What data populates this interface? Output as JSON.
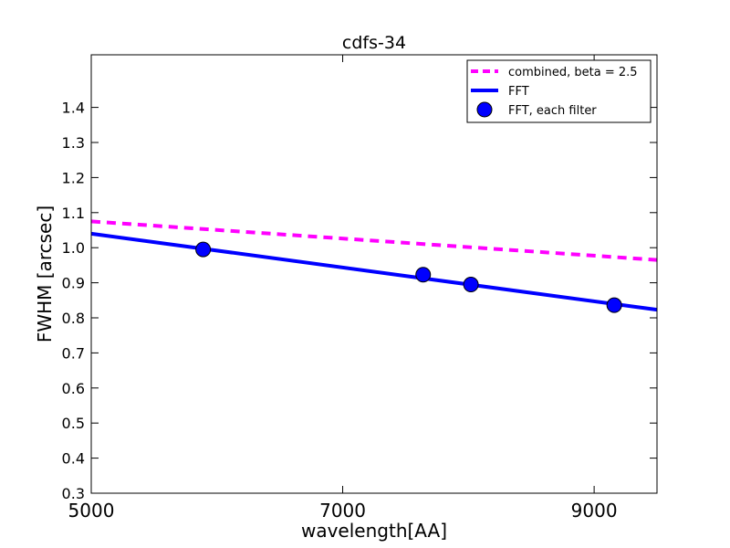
{
  "chart_data": {
    "type": "line",
    "title": "cdfs-34",
    "xlabel": "wavelength[AA]",
    "ylabel": "FWHM [arcsec]",
    "xlim": [
      5000,
      9500
    ],
    "ylim": [
      0.3,
      1.55
    ],
    "x_ticks": [
      5000,
      7000,
      9000
    ],
    "x_tick_labels": [
      "5000",
      "7000",
      "9000"
    ],
    "y_ticks": [
      0.3,
      0.4,
      0.5,
      0.6,
      0.7,
      0.8,
      0.9,
      1.0,
      1.1,
      1.2,
      1.3,
      1.4
    ],
    "y_tick_labels": [
      "0.3",
      "0.4",
      "0.5",
      "0.6",
      "0.7",
      "0.8",
      "0.9",
      "1.0",
      "1.1",
      "1.2",
      "1.3",
      "1.4"
    ],
    "grid": false,
    "legend_position": "top-right",
    "series": [
      {
        "name": "combined, beta = 2.5",
        "style": "dashed-line",
        "color": "#ff00ff",
        "x": [
          5000,
          9500
        ],
        "y": [
          1.075,
          0.965
        ]
      },
      {
        "name": "FFT",
        "style": "solid-line",
        "color": "#0000ff",
        "x": [
          5000,
          9500
        ],
        "y": [
          1.04,
          0.823
        ]
      },
      {
        "name": "FFT, each filter",
        "style": "markers",
        "color": "#0000ff",
        "x": [
          5890,
          7640,
          8020,
          9160
        ],
        "y": [
          0.995,
          0.923,
          0.895,
          0.836
        ]
      }
    ]
  }
}
